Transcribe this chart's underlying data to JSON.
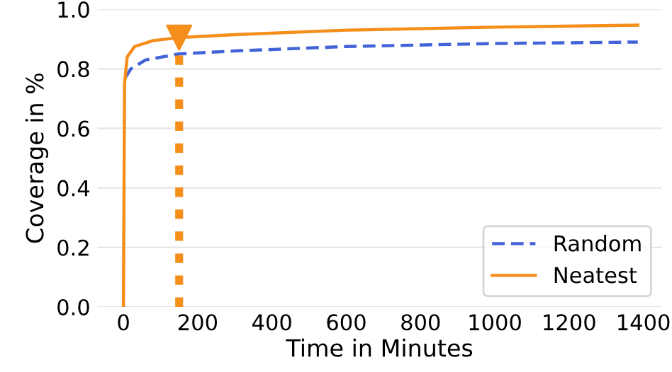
{
  "chart_data": {
    "type": "line",
    "xlabel": "Time in Minutes",
    "ylabel": "Coverage in %",
    "xlim": [
      -70,
      1450
    ],
    "ylim": [
      0,
      1.0
    ],
    "xticks": [
      0,
      200,
      400,
      600,
      800,
      1000,
      1200,
      1400
    ],
    "yticks": [
      {
        "value": 0,
        "label": "0.0"
      },
      {
        "value": 0.2,
        "label": "0.2"
      },
      {
        "value": 0.4,
        "label": "0.4"
      },
      {
        "value": 0.6,
        "label": "0.6"
      },
      {
        "value": 0.8,
        "label": "0.8"
      },
      {
        "value": 1.0,
        "label": "1.0"
      }
    ],
    "grid": "y",
    "legend": "bottom right",
    "series": [
      {
        "name": "Random",
        "color": "#4363d8",
        "line_style": "dashed",
        "x": [
          5,
          20,
          60,
          150,
          300,
          600,
          1000,
          1385
        ],
        "values": [
          0.77,
          0.8,
          0.83,
          0.85,
          0.86,
          0.875,
          0.885,
          0.89
        ]
      },
      {
        "name": "Neatest",
        "color": "#f58e1a",
        "line_style": "solid",
        "x": [
          0,
          3,
          10,
          30,
          80,
          150,
          300,
          600,
          1000,
          1385
        ],
        "values": [
          0,
          0.75,
          0.84,
          0.875,
          0.895,
          0.905,
          0.915,
          0.93,
          0.94,
          0.947
        ]
      },
      {
        "color": "#f58e1a",
        "line_style": "dotted",
        "x": [
          150,
          150
        ],
        "values": [
          0,
          0.905
        ]
      },
      {
        "type": "scatter",
        "marker": "triangle",
        "color": "#f58e1a",
        "x": [
          150
        ],
        "values": [
          0.905
        ]
      }
    ]
  }
}
